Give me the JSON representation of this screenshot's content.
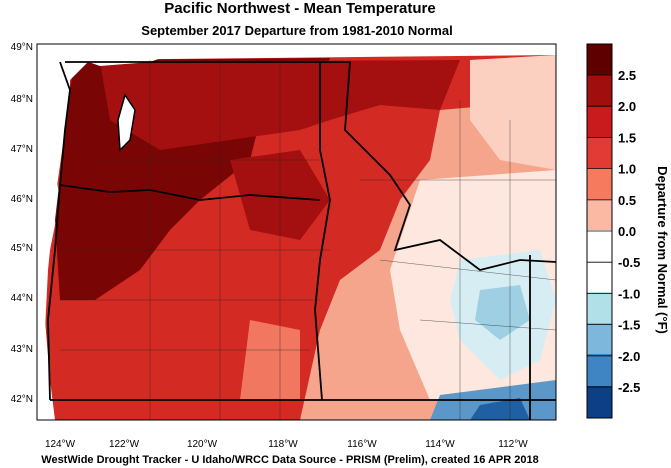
{
  "header": {
    "title": "Pacific Northwest - Mean Temperature",
    "subtitle": "September 2017  Departure from 1981-2010 Normal"
  },
  "latitude_labels": [
    "49°N",
    "48°N",
    "47°N",
    "46°N",
    "45°N",
    "44°N",
    "43°N",
    "42°N"
  ],
  "longitude_labels": [
    "124°W",
    "122°W",
    "120°W",
    "118°W",
    "116°W",
    "114°W",
    "112°W"
  ],
  "colorbar": {
    "title": "Departure from Normal (°F)",
    "labels": [
      "2.5",
      "2.0",
      "1.5",
      "1.0",
      "0.5",
      "0.0",
      "-0.5",
      "-1.0",
      "-1.5",
      "-2.0",
      "-2.5"
    ]
  },
  "footer": "WestWide Drought Tracker - U Idaho/WRCC  Data Source - PRISM (Prelim), created 16 APR 2018"
}
